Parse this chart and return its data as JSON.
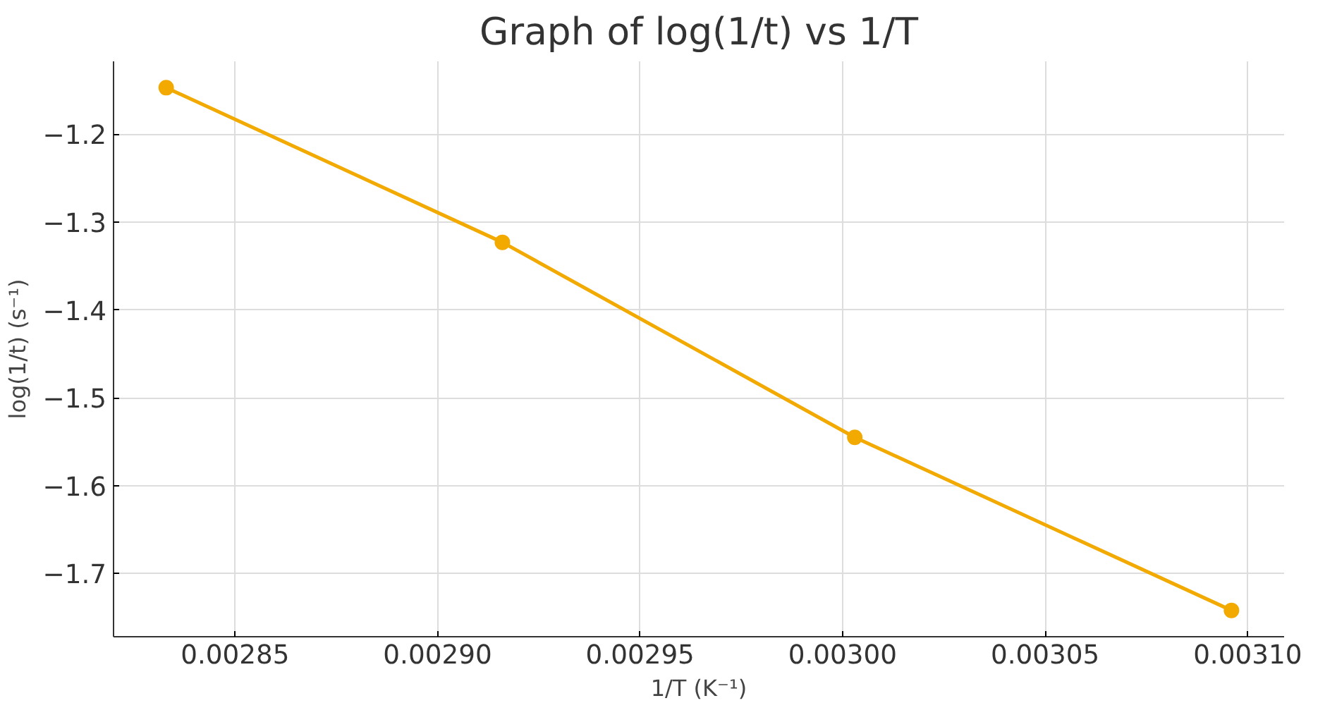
{
  "chart_data": {
    "type": "line",
    "title": "Graph of log(1/t) vs 1/T",
    "xlabel": "1/T (K⁻¹)",
    "ylabel": "log(1/t) (s⁻¹)",
    "x": [
      0.002833,
      0.002916,
      0.003003,
      0.003096
    ],
    "series": [
      {
        "color": "#f2a900",
        "values": [
          -1.147,
          -1.323,
          -1.545,
          -1.742
        ]
      }
    ],
    "marker": "circle",
    "line_style": "solid",
    "grid": true,
    "xlim": [
      0.00282,
      0.003109
    ],
    "ylim": [
      -1.772,
      -1.117
    ],
    "xticks": [
      {
        "value": 0.00285,
        "label": "0.00285"
      },
      {
        "value": 0.0029,
        "label": "0.00290"
      },
      {
        "value": 0.00295,
        "label": "0.00295"
      },
      {
        "value": 0.003,
        "label": "0.00300"
      },
      {
        "value": 0.00305,
        "label": "0.00305"
      },
      {
        "value": 0.0031,
        "label": "0.00310"
      }
    ],
    "yticks": [
      {
        "value": -1.2,
        "label": "−1.2"
      },
      {
        "value": -1.3,
        "label": "−1.3"
      },
      {
        "value": -1.4,
        "label": "−1.4"
      },
      {
        "value": -1.5,
        "label": "−1.5"
      },
      {
        "value": -1.6,
        "label": "−1.6"
      },
      {
        "value": -1.7,
        "label": "−1.7"
      }
    ]
  }
}
